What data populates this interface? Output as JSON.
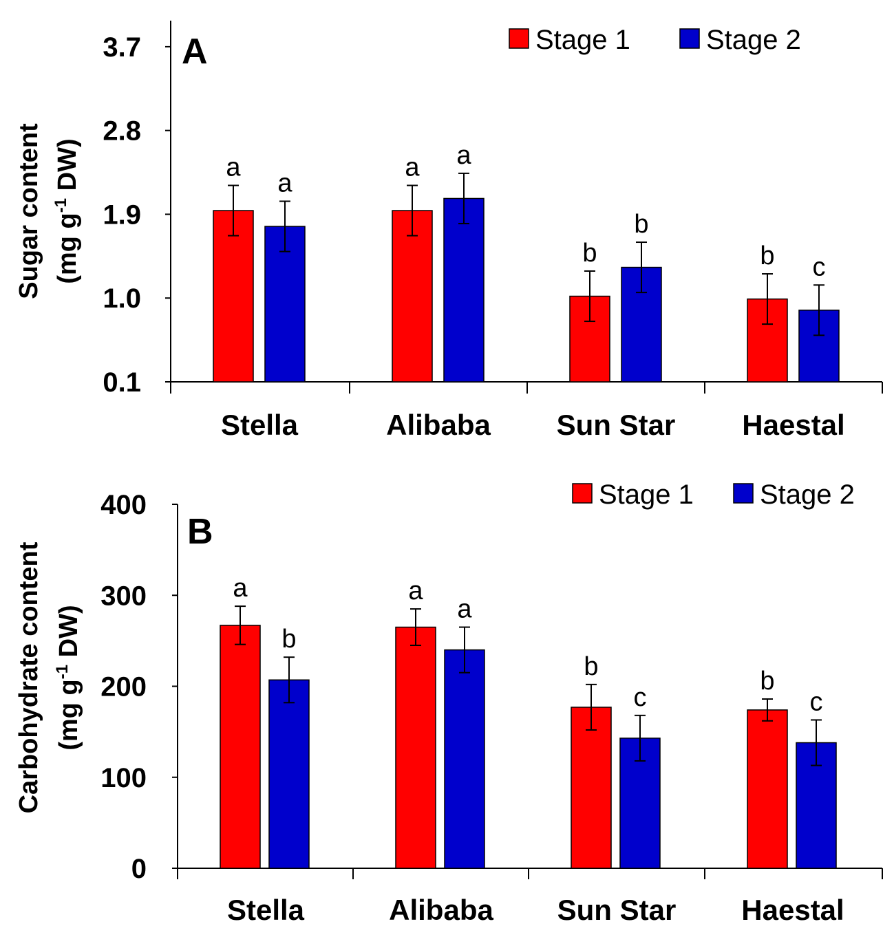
{
  "chart_data": [
    {
      "type": "bar",
      "panel": "A",
      "title": "",
      "xlabel": "",
      "ylabel_line1": "Sugar content",
      "ylabel_line2": "(mg g",
      "ylabel_sup": "-1",
      "ylabel_line2_end": " DW)",
      "ylim": [
        0.1,
        3.98
      ],
      "yticks": [
        0.1,
        1.0,
        1.9,
        2.8,
        3.7
      ],
      "ytick_labels": [
        "0.1",
        "1.0",
        "1.9",
        "2.8",
        "3.7"
      ],
      "categories": [
        "Stella",
        "Alibaba",
        "Sun Star",
        "Haestal"
      ],
      "legend_position": "top-right",
      "series": [
        {
          "name": "Stage 1",
          "color": "#ff0000",
          "values": [
            1.94,
            1.94,
            1.02,
            0.99
          ],
          "errors": [
            0.27,
            0.27,
            0.27,
            0.27
          ],
          "letters": [
            "a",
            "a",
            "b",
            "b"
          ]
        },
        {
          "name": "Stage 2",
          "color": "#0000cc",
          "values": [
            1.77,
            2.07,
            1.33,
            0.87
          ],
          "errors": [
            0.27,
            0.27,
            0.27,
            0.27
          ],
          "letters": [
            "a",
            "a",
            "b",
            "c"
          ]
        }
      ]
    },
    {
      "type": "bar",
      "panel": "B",
      "title": "",
      "xlabel": "",
      "ylabel_line1": "Carbohydrate content",
      "ylabel_line2": "(mg g",
      "ylabel_sup": "-1",
      "ylabel_line2_end": " DW)",
      "ylim": [
        0,
        400
      ],
      "yticks": [
        0,
        100,
        200,
        300,
        400
      ],
      "ytick_labels": [
        "0",
        "100",
        "200",
        "300",
        "400"
      ],
      "categories": [
        "Stella",
        "Alibaba",
        "Sun Star",
        "Haestal"
      ],
      "legend_position": "top-right",
      "series": [
        {
          "name": "Stage 1",
          "color": "#ff0000",
          "values": [
            267,
            265,
            177,
            174
          ],
          "errors": [
            21,
            20,
            25,
            12
          ],
          "letters": [
            "a",
            "a",
            "b",
            "b"
          ]
        },
        {
          "name": "Stage 2",
          "color": "#0000cc",
          "values": [
            207,
            240,
            143,
            138
          ],
          "errors": [
            25,
            25,
            25,
            25
          ],
          "letters": [
            "b",
            "a",
            "c",
            "c"
          ]
        }
      ]
    }
  ]
}
